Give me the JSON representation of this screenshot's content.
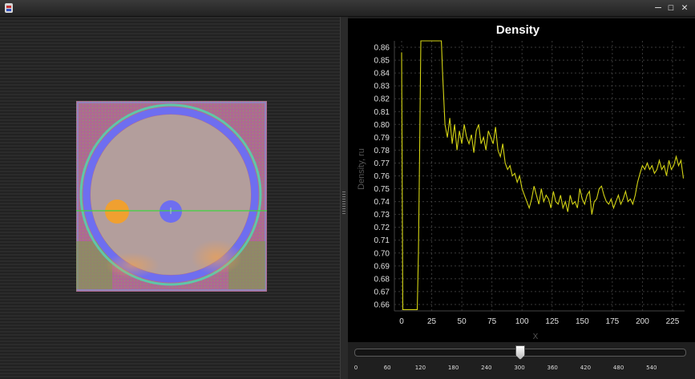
{
  "window": {
    "minimize_glyph": "—",
    "maximize_glyph": "☐",
    "close_glyph": "✕"
  },
  "chart_data": {
    "type": "line",
    "title": "Density",
    "xlabel": "X",
    "ylabel": "Density, ru",
    "xlim": [
      -6,
      235
    ],
    "ylim": [
      0.655,
      0.865
    ],
    "xticks": [
      0,
      25,
      50,
      75,
      100,
      125,
      150,
      175,
      200,
      225
    ],
    "yticks": [
      "0.86",
      "0.85",
      "0.84",
      "0.83",
      "0.82",
      "0.81",
      "0.80",
      "0.79",
      "0.78",
      "0.77",
      "0.76",
      "0.75",
      "0.74",
      "0.73",
      "0.72",
      "0.71",
      "0.70",
      "0.69",
      "0.68",
      "0.67",
      "0.66"
    ],
    "grid": true,
    "series_color": "#d4d414",
    "x": [
      0,
      0.5,
      1,
      13,
      14,
      15,
      16,
      20,
      25,
      30,
      33,
      34,
      35,
      36,
      37,
      38,
      40,
      42,
      44,
      46,
      48,
      50,
      52,
      54,
      56,
      58,
      60,
      62,
      64,
      66,
      68,
      70,
      72,
      74,
      76,
      78,
      80,
      82,
      84,
      86,
      88,
      90,
      92,
      94,
      96,
      98,
      100,
      102,
      104,
      106,
      108,
      110,
      112,
      114,
      116,
      118,
      120,
      122,
      124,
      126,
      128,
      130,
      132,
      134,
      136,
      138,
      140,
      142,
      144,
      146,
      148,
      150,
      152,
      154,
      156,
      158,
      160,
      162,
      164,
      166,
      168,
      170,
      172,
      174,
      176,
      178,
      180,
      182,
      184,
      186,
      188,
      190,
      192,
      194,
      196,
      198,
      200,
      202,
      204,
      206,
      208,
      210,
      212,
      214,
      216,
      218,
      220,
      222,
      224,
      226,
      228,
      230,
      232,
      234
    ],
    "y": [
      0.856,
      0.75,
      0.656,
      0.656,
      0.7,
      0.78,
      0.865,
      0.865,
      0.865,
      0.865,
      0.865,
      0.84,
      0.82,
      0.8,
      0.795,
      0.79,
      0.805,
      0.785,
      0.8,
      0.78,
      0.795,
      0.785,
      0.8,
      0.79,
      0.785,
      0.792,
      0.778,
      0.795,
      0.8,
      0.785,
      0.79,
      0.78,
      0.795,
      0.79,
      0.785,
      0.798,
      0.78,
      0.775,
      0.785,
      0.77,
      0.765,
      0.768,
      0.76,
      0.762,
      0.755,
      0.76,
      0.75,
      0.745,
      0.74,
      0.735,
      0.742,
      0.752,
      0.745,
      0.738,
      0.75,
      0.74,
      0.745,
      0.742,
      0.735,
      0.748,
      0.74,
      0.738,
      0.745,
      0.735,
      0.74,
      0.732,
      0.745,
      0.738,
      0.74,
      0.735,
      0.75,
      0.742,
      0.738,
      0.745,
      0.748,
      0.73,
      0.74,
      0.742,
      0.75,
      0.752,
      0.745,
      0.74,
      0.738,
      0.742,
      0.735,
      0.74,
      0.745,
      0.738,
      0.742,
      0.748,
      0.74,
      0.742,
      0.738,
      0.745,
      0.755,
      0.762,
      0.768,
      0.765,
      0.77,
      0.765,
      0.768,
      0.762,
      0.765,
      0.772,
      0.765,
      0.768,
      0.76,
      0.772,
      0.765,
      0.768,
      0.775,
      0.768,
      0.772,
      0.758
    ]
  },
  "slider": {
    "value": 300,
    "min": 0,
    "max": 600,
    "tick_labels": [
      "0",
      "60",
      "120",
      "180",
      "240",
      "300",
      "360",
      "420",
      "480",
      "540"
    ]
  }
}
